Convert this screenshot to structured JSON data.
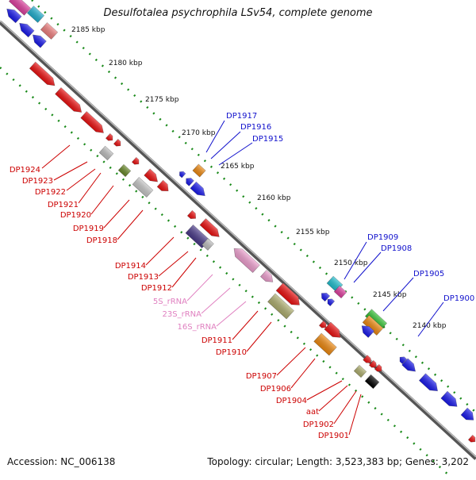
{
  "title": "Desulfotalea psychrophila LSv54, complete genome",
  "footer": {
    "accession": "Accession: NC_006138",
    "summary": "Topology: circular; Length: 3,523,383 bp; Genes: 3,202"
  },
  "scale_labels": [
    "2185 kbp",
    "2180 kbp",
    "2175 kbp",
    "2170 kbp",
    "2165 kbp",
    "2160 kbp",
    "2155 kbp",
    "2150 kbp",
    "2145 kbp",
    "2140 kbp"
  ],
  "gene_labels_forward": [
    "DP1917",
    "DP1916",
    "DP1915",
    "DP1909",
    "DP1908",
    "DP1905",
    "DP1900"
  ],
  "gene_labels_reverse": [
    "DP1924",
    "DP1923",
    "DP1922",
    "DP1921",
    "DP1920",
    "DP1919",
    "DP1918",
    "DP1914",
    "DP1913",
    "DP1912",
    "DP1911",
    "DP1910",
    "DP1907",
    "DP1906",
    "DP1904",
    "aat",
    "DP1902",
    "DP1901"
  ],
  "rrna_labels": [
    "5S_rRNA",
    "23S_rRNA",
    "16S_rRNA"
  ],
  "colors": {
    "cds": "#ee1111",
    "forward_cds": "#1a1aee",
    "rrna": "#f0a0d0",
    "backbone": "#777777",
    "kbp_ticks": "#1a8a1a",
    "forward_label": "#1010cc",
    "reverse_label": "#cc0000",
    "rrna_label": "#e080c0"
  }
}
